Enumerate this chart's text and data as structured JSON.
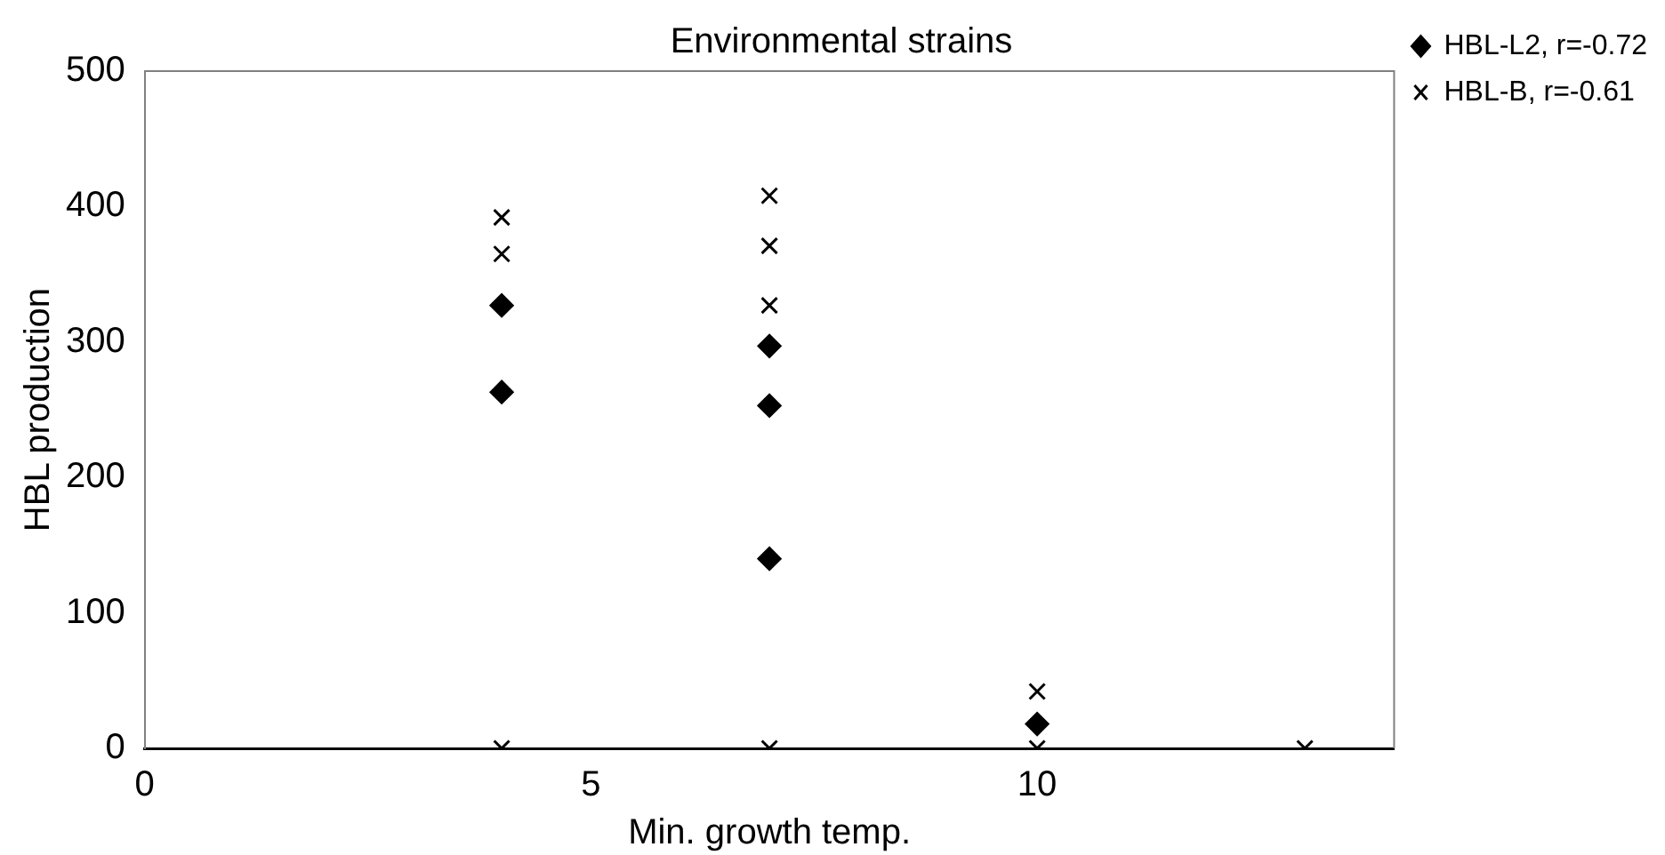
{
  "chart_data": {
    "type": "scatter",
    "title": "Environmental strains",
    "xlabel": "Min. growth temp.",
    "ylabel": "HBL production",
    "xlim": [
      0,
      14
    ],
    "xticks": [
      0,
      5,
      10
    ],
    "ylim": [
      0,
      500
    ],
    "yticks": [
      0,
      100,
      200,
      300,
      400,
      500
    ],
    "grid": false,
    "legend": "top right",
    "series": [
      {
        "name": "HBL-L2, r=-0.72",
        "color": "#000000",
        "marker": "diamond",
        "x": [
          4,
          4,
          7,
          7,
          7,
          10
        ],
        "values": [
          327,
          263,
          297,
          253,
          140,
          18
        ]
      },
      {
        "name": "HBL-B, r=-0.61",
        "color": "#000000",
        "marker": "cross",
        "x": [
          4,
          4,
          4,
          7,
          7,
          7,
          7,
          10,
          10,
          13
        ],
        "values": [
          392,
          365,
          0,
          408,
          371,
          327,
          0,
          42,
          0,
          0
        ]
      }
    ]
  }
}
